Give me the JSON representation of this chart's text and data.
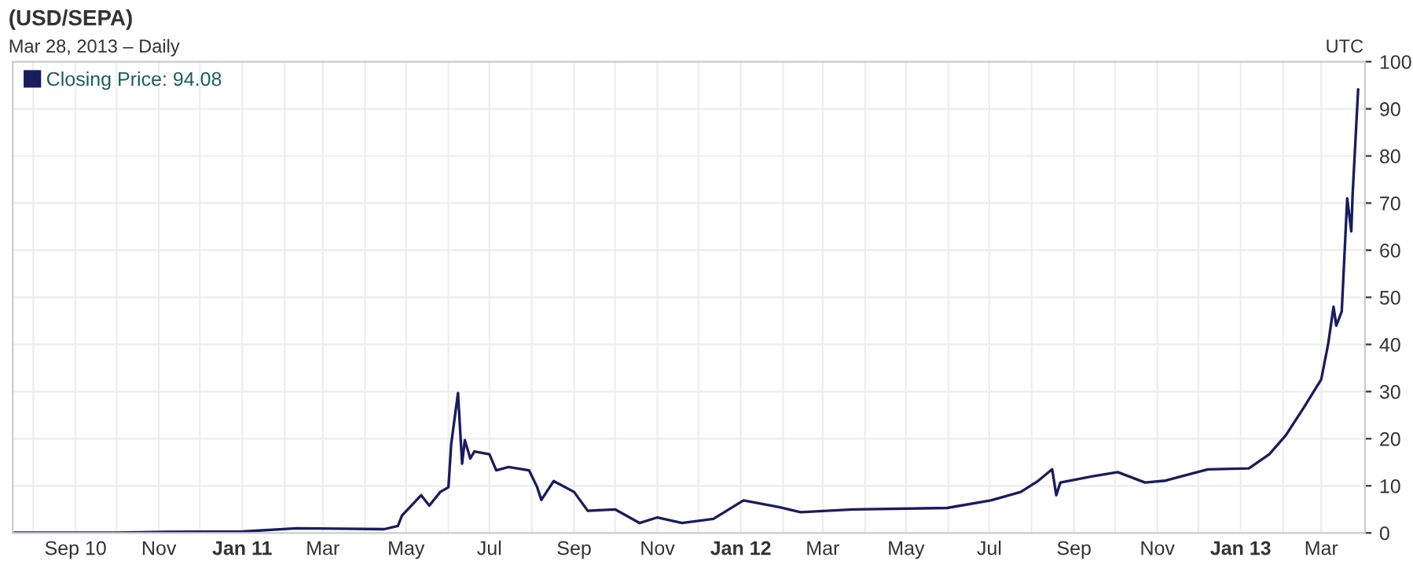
{
  "chart_data": {
    "type": "line",
    "title": "(USD/SEPA)",
    "subtitle": "Mar 28, 2013 – Daily",
    "annotations": [
      "UTC"
    ],
    "legend": "top left",
    "grid": true,
    "marker": "none",
    "line_style": "solid",
    "xlim": [
      "2010-07-17",
      "2013-04-02"
    ],
    "xticks": [
      {
        "value": "2010-08-01",
        "label": null
      },
      {
        "value": "2010-09-01",
        "label": "Sep 10"
      },
      {
        "value": "2010-10-01",
        "label": null
      },
      {
        "value": "2010-11-01",
        "label": "Nov"
      },
      {
        "value": "2010-12-01",
        "label": null
      },
      {
        "value": "2011-01-01",
        "label": "Jan 11"
      },
      {
        "value": "2011-02-01",
        "label": null
      },
      {
        "value": "2011-03-01",
        "label": "Mar"
      },
      {
        "value": "2011-04-01",
        "label": null
      },
      {
        "value": "2011-05-01",
        "label": "May"
      },
      {
        "value": "2011-06-01",
        "label": null
      },
      {
        "value": "2011-07-01",
        "label": "Jul"
      },
      {
        "value": "2011-08-01",
        "label": null
      },
      {
        "value": "2011-09-01",
        "label": "Sep"
      },
      {
        "value": "2011-10-01",
        "label": null
      },
      {
        "value": "2011-11-01",
        "label": "Nov"
      },
      {
        "value": "2011-12-01",
        "label": null
      },
      {
        "value": "2012-01-01",
        "label": "Jan 12"
      },
      {
        "value": "2012-02-01",
        "label": null
      },
      {
        "value": "2012-03-01",
        "label": "Mar"
      },
      {
        "value": "2012-04-01",
        "label": null
      },
      {
        "value": "2012-05-01",
        "label": "May"
      },
      {
        "value": "2012-06-01",
        "label": null
      },
      {
        "value": "2012-07-01",
        "label": "Jul"
      },
      {
        "value": "2012-08-01",
        "label": null
      },
      {
        "value": "2012-09-01",
        "label": "Sep"
      },
      {
        "value": "2012-10-01",
        "label": null
      },
      {
        "value": "2012-11-01",
        "label": "Nov"
      },
      {
        "value": "2012-12-01",
        "label": null
      },
      {
        "value": "2013-01-01",
        "label": "Jan 13"
      },
      {
        "value": "2013-02-01",
        "label": null
      },
      {
        "value": "2013-03-01",
        "label": "Mar"
      }
    ],
    "ylim": [
      0,
      100
    ],
    "yticks": [
      0,
      10,
      20,
      30,
      40,
      50,
      60,
      70,
      80,
      90,
      100
    ],
    "series": [
      {
        "name": "Closing Price: 94.08",
        "color": "#1b1b5e",
        "x": [
          "2010-07-18",
          "2010-10-01",
          "2010-11-06",
          "2011-01-01",
          "2011-02-10",
          "2011-03-15",
          "2011-04-15",
          "2011-04-25",
          "2011-04-28",
          "2011-05-12",
          "2011-05-18",
          "2011-05-26",
          "2011-06-01",
          "2011-06-03",
          "2011-06-08",
          "2011-06-11",
          "2011-06-13",
          "2011-06-17",
          "2011-06-20",
          "2011-07-01",
          "2011-07-06",
          "2011-07-15",
          "2011-07-30",
          "2011-08-05",
          "2011-08-08",
          "2011-08-17",
          "2011-09-01",
          "2011-09-11",
          "2011-10-01",
          "2011-10-19",
          "2011-11-01",
          "2011-11-19",
          "2011-12-12",
          "2012-01-03",
          "2012-01-29",
          "2012-02-14",
          "2012-03-23",
          "2012-05-31",
          "2012-07-02",
          "2012-07-24",
          "2012-08-05",
          "2012-08-16",
          "2012-08-19",
          "2012-08-22",
          "2012-09-14",
          "2012-10-03",
          "2012-10-23",
          "2012-11-07",
          "2012-12-08",
          "2013-01-07",
          "2013-01-22",
          "2013-02-03",
          "2013-02-16",
          "2013-03-01",
          "2013-03-06",
          "2013-03-10",
          "2013-03-12",
          "2013-03-16",
          "2013-03-20",
          "2013-03-23",
          "2013-03-24",
          "2013-03-28"
        ],
        "values": [
          0.05,
          0.06,
          0.25,
          0.3,
          1.0,
          0.9,
          0.8,
          1.5,
          3.7,
          8,
          5.8,
          8.7,
          9.7,
          18.8,
          29.7,
          14.7,
          19.7,
          15.8,
          17.3,
          16.7,
          13.3,
          14,
          13.3,
          9.7,
          7,
          11,
          8.7,
          4.7,
          5,
          2.1,
          3.3,
          2.1,
          3,
          6.9,
          5.5,
          4.4,
          5,
          5.3,
          6.9,
          8.7,
          10.9,
          13.5,
          8,
          10.7,
          12,
          12.9,
          10.7,
          11.1,
          13.5,
          13.7,
          16.7,
          20.7,
          26.5,
          32.6,
          40,
          48,
          44,
          47,
          71,
          64,
          72,
          94.08
        ]
      }
    ]
  }
}
